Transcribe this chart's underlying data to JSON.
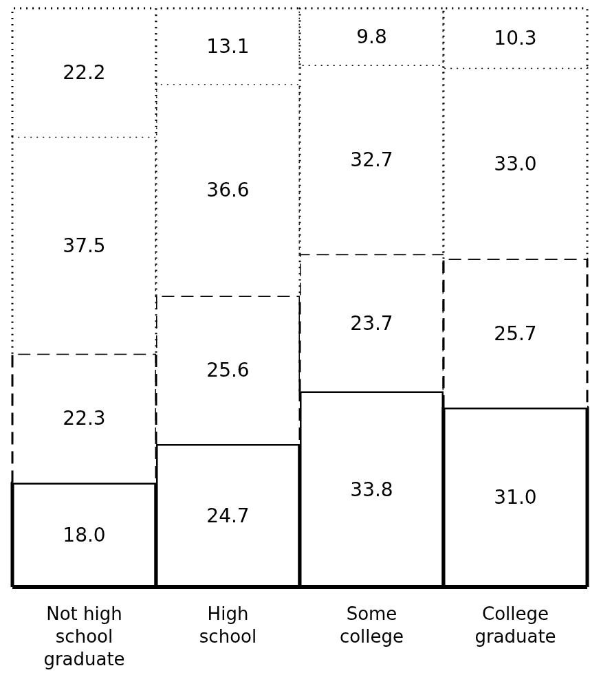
{
  "chart_data": {
    "type": "bar",
    "stacked": true,
    "categories": [
      "Not high school graduate",
      "High school",
      "Some college",
      "College graduate"
    ],
    "series": [
      {
        "color": "#ffffff",
        "line_style": "solid",
        "values": [
          18.0,
          24.7,
          33.8,
          31.0
        ],
        "value_labels": [
          "18.0",
          "24.7",
          "33.8",
          "31.0"
        ]
      },
      {
        "color": "#ffffff",
        "line_style": "dashed",
        "values": [
          22.3,
          25.6,
          23.7,
          25.7
        ],
        "value_labels": [
          "22.3",
          "25.6",
          "23.7",
          "25.7"
        ]
      },
      {
        "color": "#ffffff",
        "line_style": "dotted",
        "values": [
          37.5,
          36.6,
          32.7,
          33.0
        ],
        "value_labels": [
          "37.5",
          "36.6",
          "32.7",
          "33.0"
        ]
      },
      {
        "color": "#ffffff",
        "line_style": "dotted",
        "values": [
          22.2,
          13.1,
          9.8,
          10.3
        ],
        "value_labels": [
          "22.2",
          "13.1",
          "9.8",
          "10.3"
        ]
      }
    ]
  }
}
